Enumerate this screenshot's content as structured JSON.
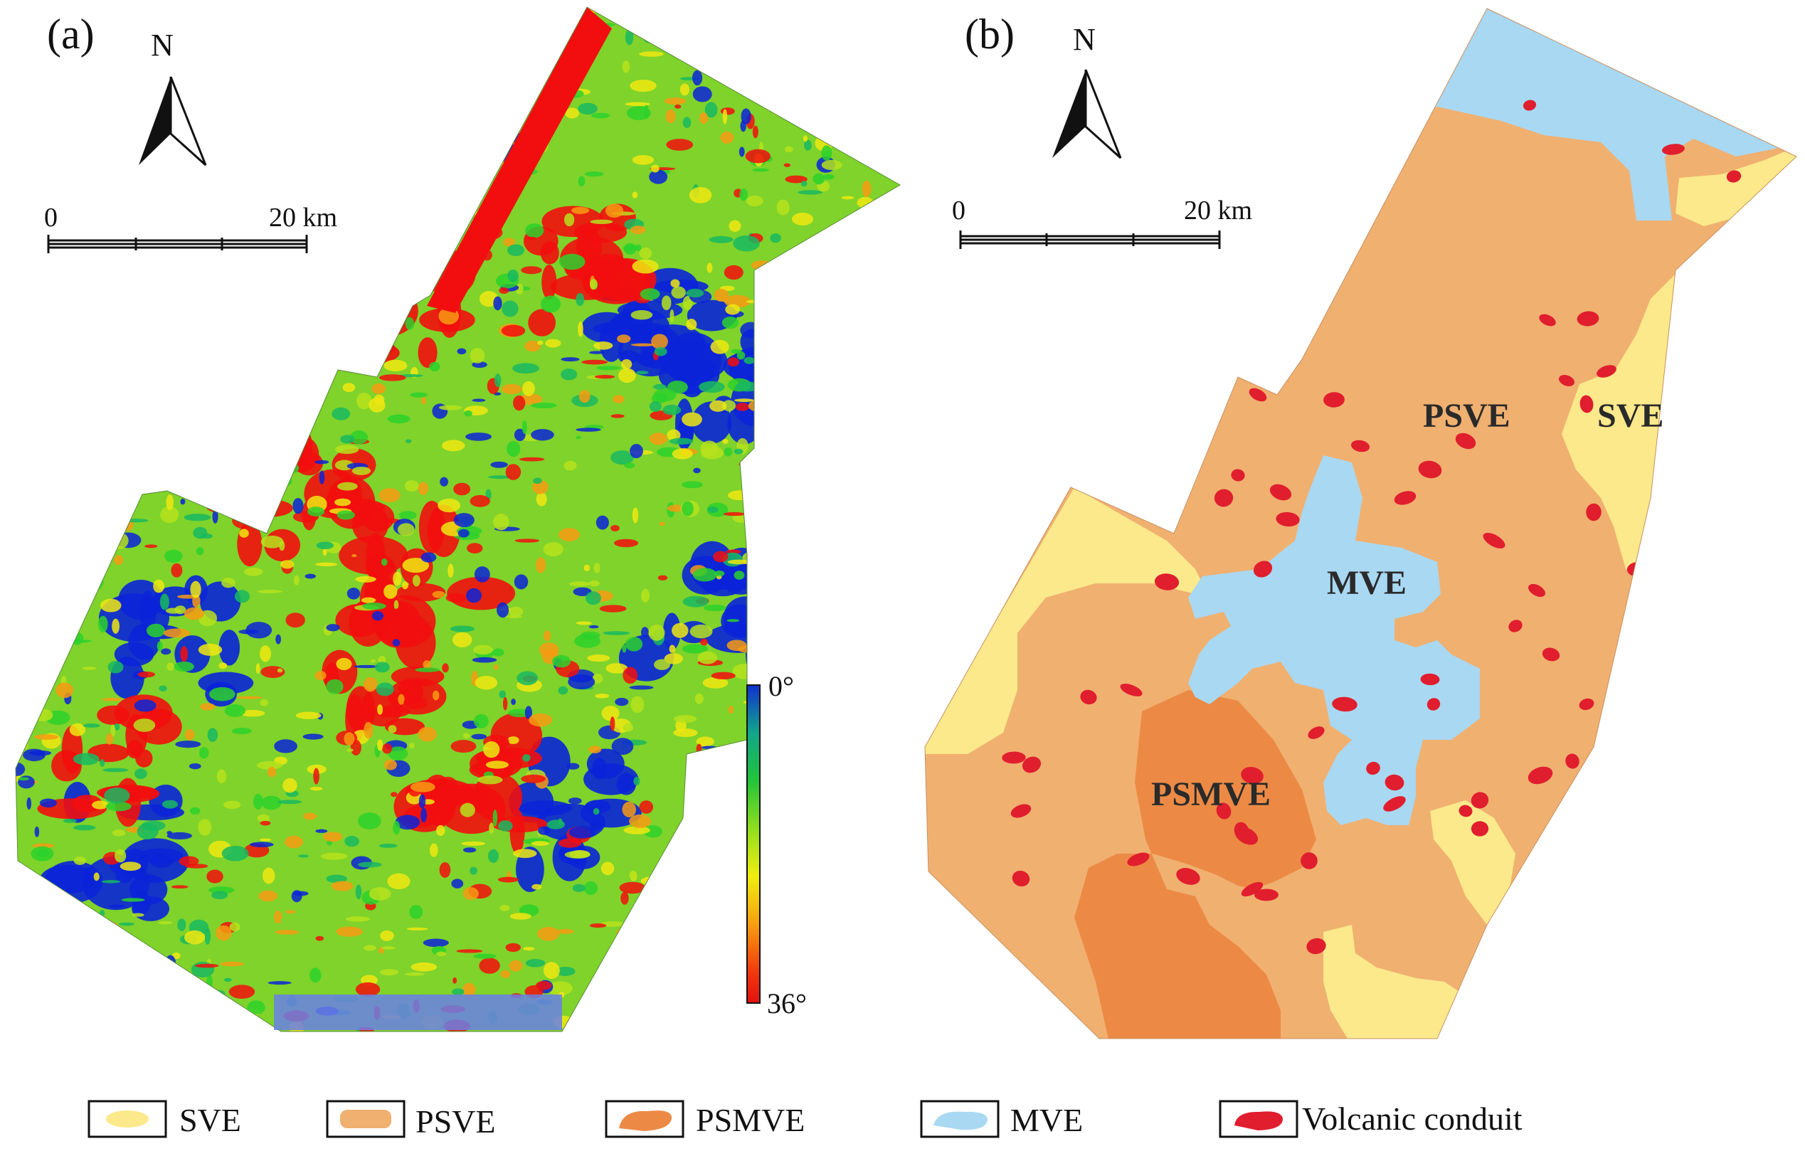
{
  "panels": {
    "a": {
      "label": "(a)"
    },
    "b": {
      "label": "(b)"
    }
  },
  "north_arrow": {
    "label": "N"
  },
  "scale_bar": {
    "start": "0",
    "end": "20 km"
  },
  "colorbar": {
    "top_label": "0°",
    "bottom_label": "36°",
    "min": 0,
    "max": 36
  },
  "zones": {
    "psve": "PSVE",
    "sve": "SVE",
    "mve": "MVE",
    "psmve": "PSMVE"
  },
  "legend": {
    "items": [
      {
        "key": "sve",
        "label": "SVE",
        "color": "#fbe98b"
      },
      {
        "key": "psve",
        "label": "PSVE",
        "color": "#f0b070"
      },
      {
        "key": "psmve",
        "label": "PSMVE",
        "color": "#ec8a45"
      },
      {
        "key": "mve",
        "label": "MVE",
        "color": "#a9d8f2"
      },
      {
        "key": "conduit",
        "label": "Volcanic conduit",
        "color": "#e01e2e"
      }
    ]
  },
  "colors": {
    "sve": "#fbe98b",
    "psve": "#f0b070",
    "psmve": "#ec8a45",
    "mve": "#a9d8f2",
    "conduit": "#e01e2e",
    "slope_low": "#0a23d8",
    "slope_mid": "#2bd12b",
    "slope_high": "#f20e0e"
  }
}
